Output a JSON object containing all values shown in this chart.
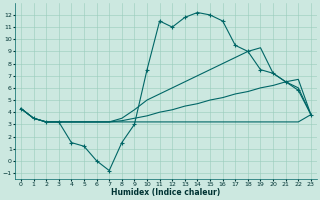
{
  "xlabel": "Humidex (Indice chaleur)",
  "background_color": "#cce8e0",
  "grid_color": "#99ccbb",
  "line_color": "#006666",
  "xlim": [
    -0.5,
    23.5
  ],
  "ylim": [
    -1.5,
    13.0
  ],
  "xticks": [
    0,
    1,
    2,
    3,
    4,
    5,
    6,
    7,
    8,
    9,
    10,
    11,
    12,
    13,
    14,
    15,
    16,
    17,
    18,
    19,
    20,
    21,
    22,
    23
  ],
  "yticks": [
    -1,
    0,
    1,
    2,
    3,
    4,
    5,
    6,
    7,
    8,
    9,
    10,
    11,
    12
  ],
  "series": [
    {
      "x": [
        0,
        1,
        2,
        3,
        4,
        5,
        6,
        7,
        8,
        9,
        10,
        11,
        12,
        13,
        14,
        15,
        16,
        17,
        18,
        19,
        20,
        21,
        22,
        23
      ],
      "y": [
        4.3,
        3.5,
        3.2,
        3.2,
        3.2,
        3.2,
        3.2,
        3.2,
        3.2,
        3.2,
        3.2,
        3.2,
        3.2,
        3.2,
        3.2,
        3.2,
        3.2,
        3.2,
        3.2,
        3.2,
        3.2,
        3.2,
        3.2,
        3.8
      ],
      "marker": false
    },
    {
      "x": [
        0,
        1,
        2,
        3,
        4,
        5,
        6,
        7,
        8,
        9,
        10,
        11,
        12,
        13,
        14,
        15,
        16,
        17,
        18,
        19,
        20,
        21,
        22,
        23
      ],
      "y": [
        4.3,
        3.5,
        3.2,
        3.2,
        3.2,
        3.2,
        3.2,
        3.2,
        3.3,
        3.5,
        3.7,
        4.0,
        4.2,
        4.5,
        4.7,
        5.0,
        5.2,
        5.5,
        5.7,
        6.0,
        6.2,
        6.5,
        6.7,
        3.8
      ],
      "marker": false
    },
    {
      "x": [
        0,
        1,
        2,
        3,
        4,
        5,
        6,
        7,
        8,
        9,
        10,
        11,
        12,
        13,
        14,
        15,
        16,
        17,
        18,
        19,
        20,
        21,
        22,
        23
      ],
      "y": [
        4.3,
        3.5,
        3.2,
        3.2,
        3.2,
        3.2,
        3.2,
        3.2,
        3.5,
        4.2,
        5.0,
        5.5,
        6.0,
        6.5,
        7.0,
        7.5,
        8.0,
        8.5,
        9.0,
        9.3,
        7.2,
        6.5,
        6.0,
        3.8
      ],
      "marker": false
    },
    {
      "x": [
        0,
        1,
        2,
        3,
        4,
        5,
        6,
        7,
        8,
        9,
        10,
        11,
        12,
        13,
        14,
        15,
        16,
        17,
        18,
        19,
        20,
        21,
        22,
        23
      ],
      "y": [
        4.3,
        3.5,
        3.2,
        3.2,
        1.5,
        1.2,
        0.0,
        -0.8,
        1.5,
        3.0,
        7.5,
        11.5,
        11.0,
        11.8,
        12.2,
        12.0,
        11.5,
        9.5,
        9.0,
        7.5,
        7.2,
        6.5,
        5.8,
        3.8
      ],
      "marker": true
    }
  ]
}
